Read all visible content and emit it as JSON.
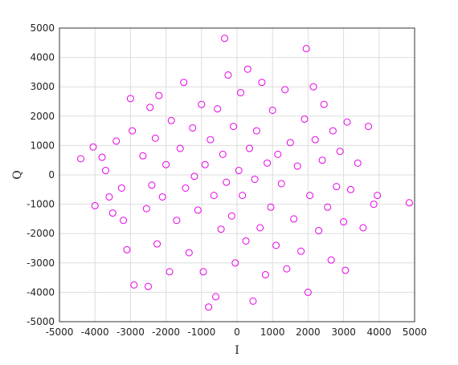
{
  "chart_data": {
    "type": "scatter",
    "title": "",
    "xlabel": "I",
    "ylabel": "Q",
    "xlim": [
      -5000,
      5000
    ],
    "ylim": [
      -5000,
      5000
    ],
    "xticks": [
      -5000,
      -4000,
      -3000,
      -2000,
      -1000,
      0,
      1000,
      2000,
      3000,
      4000,
      5000
    ],
    "yticks": [
      -5000,
      -4000,
      -3000,
      -2000,
      -1000,
      0,
      1000,
      2000,
      3000,
      4000,
      5000
    ],
    "grid": true,
    "legend": "none",
    "marker": "circle-open",
    "colors": {
      "marker": "#e600e6",
      "grid": "#dddddd",
      "axis": "#333333"
    },
    "series": [
      {
        "points": [
          [
            -4400,
            550
          ],
          [
            -4050,
            950
          ],
          [
            -4000,
            -1050
          ],
          [
            -3800,
            600
          ],
          [
            -3700,
            150
          ],
          [
            -3600,
            -750
          ],
          [
            -3500,
            -1300
          ],
          [
            -3400,
            1150
          ],
          [
            -3250,
            -450
          ],
          [
            -3200,
            -1550
          ],
          [
            -3100,
            -2550
          ],
          [
            -3000,
            2600
          ],
          [
            -2950,
            1500
          ],
          [
            -2900,
            -3750
          ],
          [
            -2650,
            650
          ],
          [
            -2550,
            -1150
          ],
          [
            -2500,
            -3800
          ],
          [
            -2450,
            2300
          ],
          [
            -2400,
            -350
          ],
          [
            -2300,
            1250
          ],
          [
            -2250,
            -2350
          ],
          [
            -2200,
            2700
          ],
          [
            -2100,
            -750
          ],
          [
            -2000,
            350
          ],
          [
            -1900,
            -3300
          ],
          [
            -1850,
            1850
          ],
          [
            -1700,
            -1550
          ],
          [
            -1600,
            900
          ],
          [
            -1500,
            3150
          ],
          [
            -1450,
            -450
          ],
          [
            -1350,
            -2650
          ],
          [
            -1250,
            1600
          ],
          [
            -1200,
            -50
          ],
          [
            -1100,
            -1200
          ],
          [
            -1000,
            2400
          ],
          [
            -950,
            -3300
          ],
          [
            -900,
            350
          ],
          [
            -800,
            -4500
          ],
          [
            -750,
            1200
          ],
          [
            -650,
            -700
          ],
          [
            -600,
            -4150
          ],
          [
            -550,
            2250
          ],
          [
            -450,
            -1850
          ],
          [
            -400,
            700
          ],
          [
            -350,
            4650
          ],
          [
            -300,
            -250
          ],
          [
            -250,
            3400
          ],
          [
            -150,
            -1400
          ],
          [
            -100,
            1650
          ],
          [
            -50,
            -3000
          ],
          [
            50,
            150
          ],
          [
            100,
            2800
          ],
          [
            150,
            -700
          ],
          [
            250,
            -2250
          ],
          [
            300,
            3600
          ],
          [
            350,
            900
          ],
          [
            450,
            -4300
          ],
          [
            500,
            -150
          ],
          [
            550,
            1500
          ],
          [
            650,
            -1800
          ],
          [
            700,
            3150
          ],
          [
            800,
            -3400
          ],
          [
            850,
            400
          ],
          [
            950,
            -1100
          ],
          [
            1000,
            2200
          ],
          [
            1100,
            -2400
          ],
          [
            1150,
            700
          ],
          [
            1250,
            -300
          ],
          [
            1350,
            2900
          ],
          [
            1400,
            -3200
          ],
          [
            1500,
            1100
          ],
          [
            1600,
            -1500
          ],
          [
            1700,
            300
          ],
          [
            1800,
            -2600
          ],
          [
            1900,
            1900
          ],
          [
            1950,
            4300
          ],
          [
            2000,
            -4000
          ],
          [
            2050,
            -700
          ],
          [
            2150,
            3000
          ],
          [
            2200,
            1200
          ],
          [
            2300,
            -1900
          ],
          [
            2400,
            500
          ],
          [
            2450,
            2400
          ],
          [
            2550,
            -1100
          ],
          [
            2650,
            -2900
          ],
          [
            2700,
            1500
          ],
          [
            2800,
            -400
          ],
          [
            2900,
            800
          ],
          [
            3000,
            -1600
          ],
          [
            3050,
            -3250
          ],
          [
            3100,
            1800
          ],
          [
            3200,
            -500
          ],
          [
            3400,
            400
          ],
          [
            3550,
            -1800
          ],
          [
            3700,
            1650
          ],
          [
            3850,
            -1000
          ],
          [
            3950,
            -700
          ],
          [
            4850,
            -950
          ]
        ]
      }
    ]
  }
}
